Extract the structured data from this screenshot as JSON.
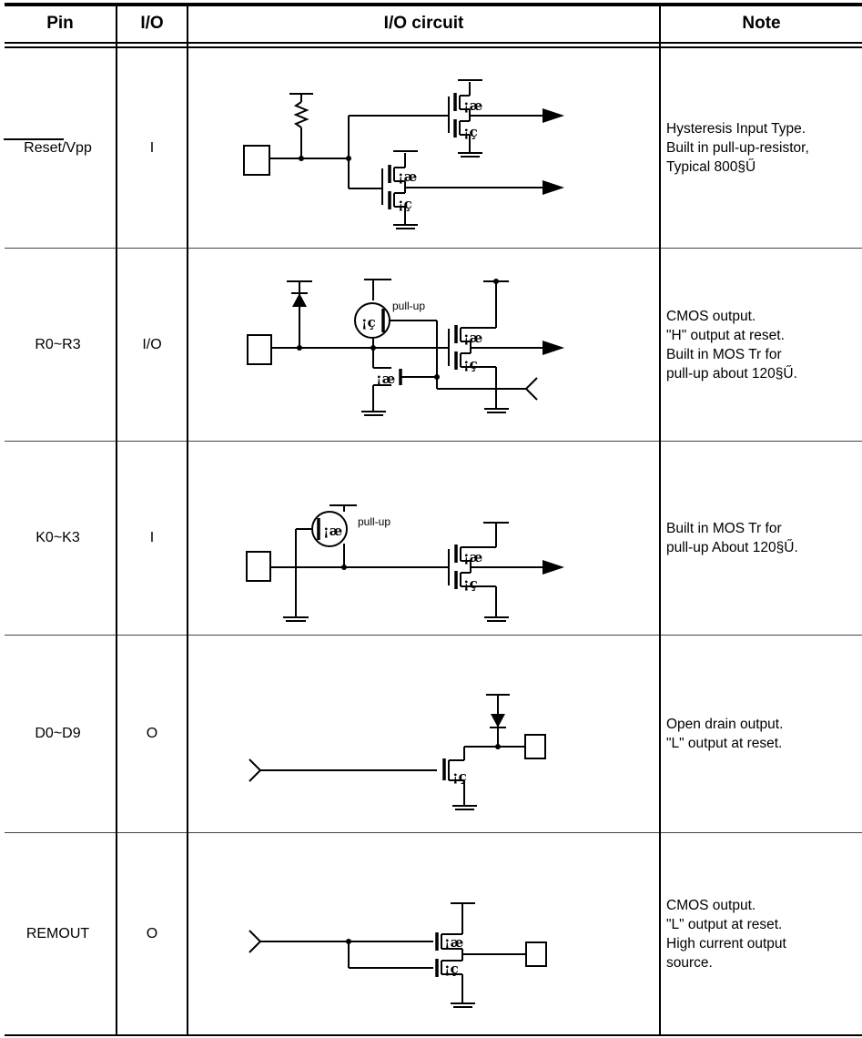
{
  "headers": {
    "pin": "Pin",
    "io": "I/O",
    "circuit": "I/O circuit",
    "note": "Note"
  },
  "rows": [
    {
      "pin": "Reset/Vpp",
      "io": "I",
      "note": [
        "Hysteresis Input Type.",
        "Built in pull-up-resistor,",
        "Typical 800§Ű"
      ],
      "marks": {
        "p": "¡æ",
        "n": "¡ç",
        "p2": "¡æ",
        "n2": "¡ç"
      }
    },
    {
      "pin": "R0~R3",
      "io": "I/O",
      "note": [
        "CMOS output.",
        "\"H\" output at reset.",
        "Built in MOS Tr for",
        "pull-up about 120§Ű."
      ],
      "marks": {
        "pullup": "¡ç",
        "pullup_label": "pull-up",
        "p": "¡æ",
        "n": "¡ç",
        "n_small": "¡æ"
      }
    },
    {
      "pin": "K0~K3",
      "io": "I",
      "note": [
        "Built in MOS Tr for",
        "pull-up About 120§Ű."
      ],
      "marks": {
        "pullup": "¡æ",
        "pullup_label": "pull-up",
        "p": "¡æ",
        "n": "¡ç"
      }
    },
    {
      "pin": "D0~D9",
      "io": "O",
      "note": [
        "Open drain output.",
        "\"L\" output at reset."
      ],
      "marks": {
        "n": "¡ç"
      }
    },
    {
      "pin": "REMOUT",
      "io": "O",
      "note": [
        "CMOS output.",
        "\"L\" output at reset.",
        "High current output",
        "source."
      ],
      "marks": {
        "p": "¡æ",
        "n": "¡ç"
      }
    }
  ]
}
